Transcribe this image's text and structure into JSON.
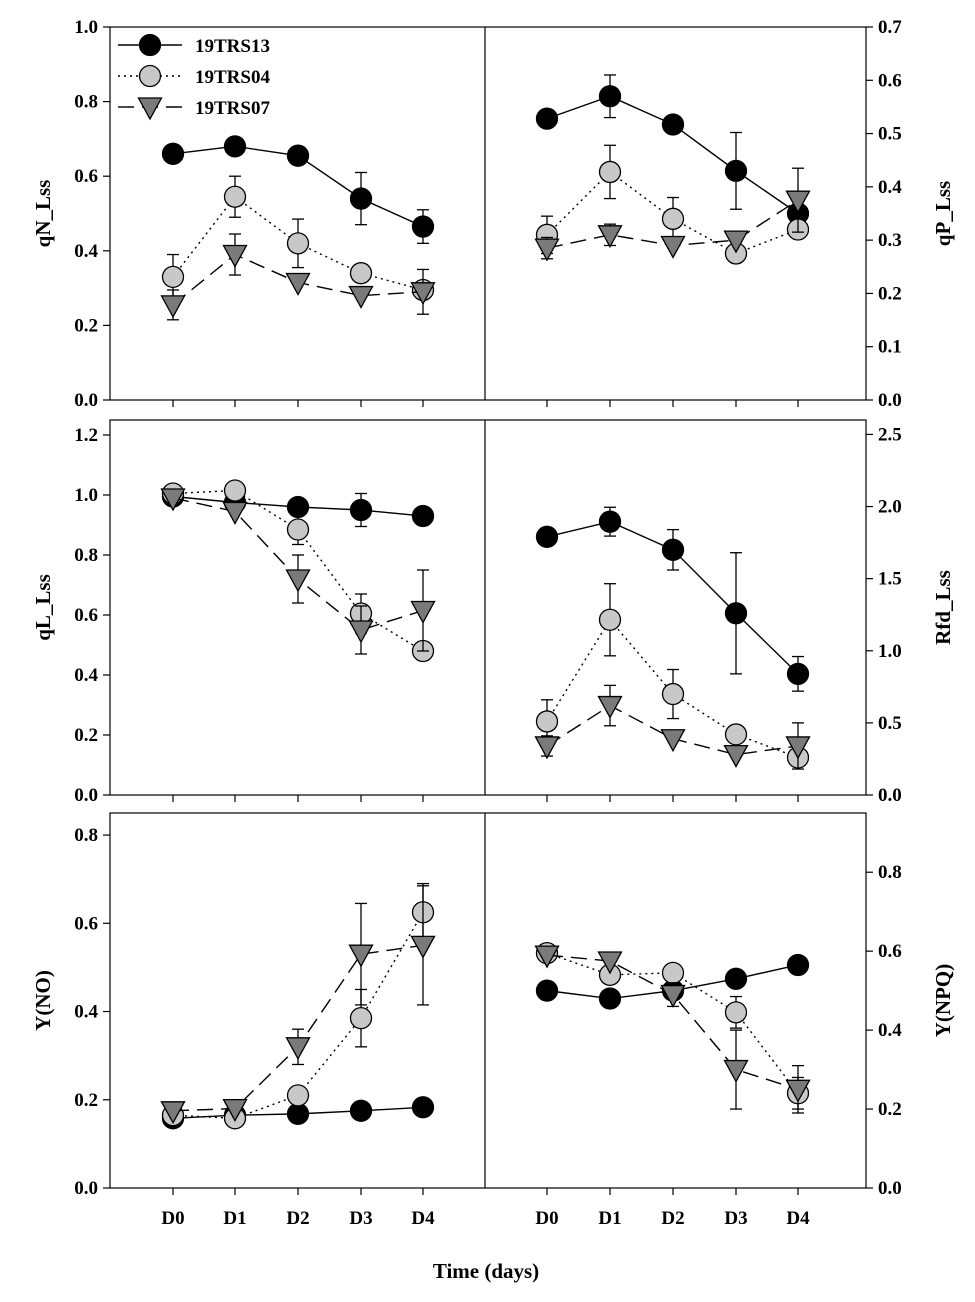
{
  "series_styles": {
    "19TRS13": {
      "fill": "#000000",
      "dash": "",
      "marker": "circle"
    },
    "19TRS04": {
      "fill": "#c8c8c8",
      "dash": "2,4",
      "marker": "circle"
    },
    "19TRS07": {
      "fill": "#7a7a7a",
      "dash": "16,8",
      "marker": "triangle-down"
    }
  },
  "xlabel": "Time (days)",
  "chart_data": [
    {
      "type": "line",
      "id": "qN",
      "ylabel": "qN_Lss",
      "axis_side": "left",
      "ylim": [
        0,
        1.0
      ],
      "yticks": [
        0.0,
        0.2,
        0.4,
        0.6,
        0.8,
        1.0
      ],
      "ytick_labels": [
        "0.0",
        "0.2",
        "0.4",
        "0.6",
        "0.8",
        "1.0"
      ],
      "categories": [
        "D0",
        "D1",
        "D2",
        "D3",
        "D4"
      ],
      "series": [
        {
          "name": "19TRS13",
          "values": [
            0.66,
            0.68,
            0.655,
            0.54,
            0.465
          ],
          "err": [
            0,
            0,
            0,
            0.07,
            0.045
          ]
        },
        {
          "name": "19TRS04",
          "values": [
            0.33,
            0.545,
            0.42,
            0.34,
            0.295
          ],
          "err": [
            0.06,
            0.055,
            0.065,
            0,
            0
          ]
        },
        {
          "name": "19TRS07",
          "values": [
            0.255,
            0.39,
            0.315,
            0.28,
            0.29
          ],
          "err": [
            0.04,
            0.055,
            0,
            0,
            0.06
          ]
        }
      ]
    },
    {
      "type": "line",
      "id": "qP",
      "ylabel": "qP_Lss",
      "axis_side": "right",
      "ylim": [
        0,
        0.7
      ],
      "yticks": [
        0.0,
        0.1,
        0.2,
        0.3,
        0.4,
        0.5,
        0.6,
        0.7
      ],
      "ytick_labels": [
        "0.0",
        "0.1",
        "0.2",
        "0.3",
        "0.4",
        "0.5",
        "0.6",
        "0.7"
      ],
      "categories": [
        "D0",
        "D1",
        "D2",
        "D3",
        "D4"
      ],
      "series": [
        {
          "name": "19TRS13",
          "values": [
            0.528,
            0.57,
            0.517,
            0.43,
            0.35
          ],
          "err": [
            0,
            0.04,
            0,
            0.072,
            0.04
          ]
        },
        {
          "name": "19TRS04",
          "values": [
            0.31,
            0.428,
            0.34,
            0.275,
            0.32
          ],
          "err": [
            0.035,
            0.05,
            0.04,
            0,
            0
          ]
        },
        {
          "name": "19TRS07",
          "values": [
            0.285,
            0.31,
            0.29,
            0.3,
            0.375
          ],
          "err": [
            0.02,
            0.02,
            0,
            0,
            0.06
          ]
        }
      ]
    },
    {
      "type": "line",
      "id": "qL",
      "ylabel": "qL_Lss",
      "axis_side": "left",
      "ylim": [
        0,
        1.25
      ],
      "yticks": [
        0.0,
        0.2,
        0.4,
        0.6,
        0.8,
        1.0,
        1.2
      ],
      "ytick_labels": [
        "0.0",
        "0.2",
        "0.4",
        "0.6",
        "0.8",
        "1.0",
        "1.2"
      ],
      "categories": [
        "D0",
        "D1",
        "D2",
        "D3",
        "D4"
      ],
      "series": [
        {
          "name": "19TRS13",
          "values": [
            0.995,
            0.975,
            0.96,
            0.95,
            0.93
          ],
          "err": [
            0,
            0,
            0,
            0.055,
            0
          ]
        },
        {
          "name": "19TRS04",
          "values": [
            1.005,
            1.015,
            0.885,
            0.605,
            0.48
          ],
          "err": [
            0.015,
            0,
            0.05,
            0.065,
            0.03
          ]
        },
        {
          "name": "19TRS07",
          "values": [
            0.99,
            0.945,
            0.72,
            0.55,
            0.615
          ],
          "err": [
            0,
            0,
            0.08,
            0.08,
            0.135
          ]
        }
      ]
    },
    {
      "type": "line",
      "id": "Rfd",
      "ylabel": "Rfd_Lss",
      "axis_side": "right",
      "ylim": [
        0,
        2.6
      ],
      "yticks": [
        0.0,
        0.5,
        1.0,
        1.5,
        2.0,
        2.5
      ],
      "ytick_labels": [
        "0.0",
        "0.5",
        "1.0",
        "1.5",
        "2.0",
        "2.5"
      ],
      "categories": [
        "D0",
        "D1",
        "D2",
        "D3",
        "D4"
      ],
      "series": [
        {
          "name": "19TRS13",
          "values": [
            1.79,
            1.895,
            1.7,
            1.26,
            0.84
          ],
          "err": [
            0,
            0.1,
            0.14,
            0.42,
            0.12
          ]
        },
        {
          "name": "19TRS04",
          "values": [
            0.51,
            1.215,
            0.7,
            0.42,
            0.26
          ],
          "err": [
            0.15,
            0.25,
            0.17,
            0,
            0
          ]
        },
        {
          "name": "19TRS07",
          "values": [
            0.34,
            0.62,
            0.39,
            0.28,
            0.34
          ],
          "err": [
            0.07,
            0.14,
            0,
            0,
            0.16
          ]
        }
      ]
    },
    {
      "type": "line",
      "id": "YNO",
      "ylabel": "Y(NO)",
      "axis_side": "left",
      "ylim": [
        0,
        0.85
      ],
      "yticks": [
        0.0,
        0.2,
        0.4,
        0.6,
        0.8
      ],
      "ytick_labels": [
        "0.0",
        "0.2",
        "0.4",
        "0.6",
        "0.8"
      ],
      "categories": [
        "D0",
        "D1",
        "D2",
        "D3",
        "D4"
      ],
      "series": [
        {
          "name": "19TRS13",
          "values": [
            0.158,
            0.165,
            0.168,
            0.175,
            0.183
          ],
          "err": [
            0,
            0,
            0,
            0,
            0
          ]
        },
        {
          "name": "19TRS04",
          "values": [
            0.165,
            0.158,
            0.21,
            0.385,
            0.625
          ],
          "err": [
            0,
            0,
            0,
            0.065,
            0.065
          ]
        },
        {
          "name": "19TRS07",
          "values": [
            0.175,
            0.18,
            0.32,
            0.53,
            0.55
          ],
          "err": [
            0,
            0,
            0.04,
            0.115,
            0.135
          ]
        }
      ]
    },
    {
      "type": "line",
      "id": "YNPQ",
      "ylabel": "Y(NPQ)",
      "axis_side": "right",
      "ylim": [
        0,
        0.95
      ],
      "yticks": [
        0.0,
        0.2,
        0.4,
        0.6,
        0.8
      ],
      "ytick_labels": [
        "0.0",
        "0.2",
        "0.4",
        "0.6",
        "0.8"
      ],
      "categories": [
        "D0",
        "D1",
        "D2",
        "D3",
        "D4"
      ],
      "series": [
        {
          "name": "19TRS13",
          "values": [
            0.5,
            0.48,
            0.5,
            0.53,
            0.565
          ],
          "err": [
            0,
            0,
            0,
            0.02,
            0
          ]
        },
        {
          "name": "19TRS04",
          "values": [
            0.595,
            0.54,
            0.545,
            0.445,
            0.24
          ],
          "err": [
            0,
            0,
            0,
            0.04,
            0.04
          ]
        },
        {
          "name": "19TRS07",
          "values": [
            0.59,
            0.575,
            0.49,
            0.3,
            0.25
          ],
          "err": [
            0,
            0,
            0.03,
            0.1,
            0.06
          ]
        }
      ]
    }
  ],
  "legend": {
    "entries": [
      "19TRS13",
      "19TRS04",
      "19TRS07"
    ]
  }
}
